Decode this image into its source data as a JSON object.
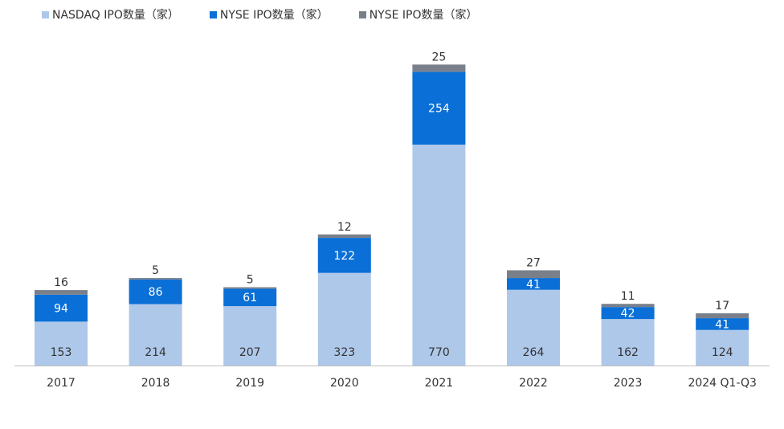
{
  "chart_data": {
    "type": "bar",
    "stacked": true,
    "categories": [
      "2017",
      "2018",
      "2019",
      "2020",
      "2021",
      "2022",
      "2023",
      "2024 Q1-Q3"
    ],
    "series": [
      {
        "name": "NASDAQ IPO数量（家）",
        "values": [
          153,
          214,
          207,
          323,
          770,
          264,
          162,
          124
        ],
        "color": "#aec8ea",
        "label_color": "#333333"
      },
      {
        "name": "NYSE IPO数量（家）",
        "values": [
          94,
          86,
          61,
          122,
          254,
          41,
          42,
          41
        ],
        "color": "#0a6fd6",
        "label_color": "#ffffff"
      },
      {
        "name": "NYSE IPO数量（家）",
        "values": [
          16,
          5,
          5,
          12,
          25,
          27,
          11,
          17
        ],
        "color": "#7a808a",
        "label_color": "#333333"
      }
    ],
    "title": "",
    "xlabel": "",
    "ylabel": "",
    "ylim": [
      0,
      1120
    ],
    "grid": false,
    "legend_position": "top-left"
  }
}
